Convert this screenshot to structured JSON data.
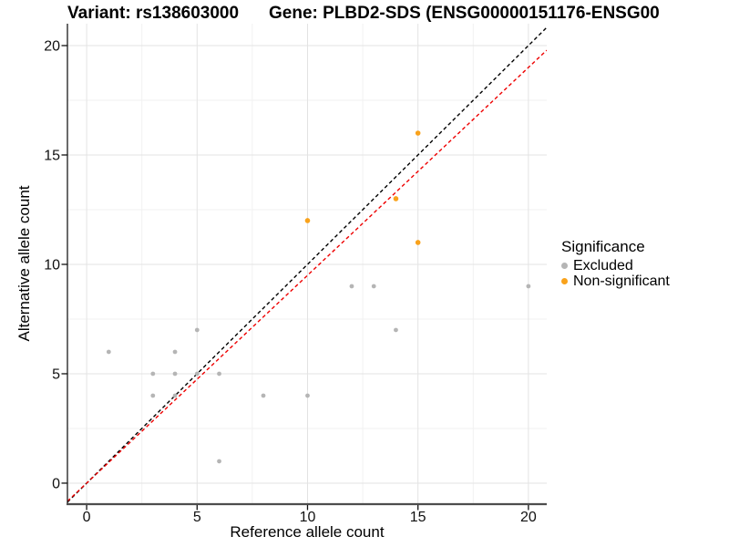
{
  "chart_data": {
    "type": "scatter",
    "titles": {
      "left": "Variant: rs138603000",
      "right": "Gene: PLBD2-SDS (ENSG00000151176-ENSG00"
    },
    "axes": {
      "x": {
        "label": "Reference allele count",
        "ticks": [
          0,
          5,
          10,
          15,
          20
        ],
        "minor": [
          2.5,
          7.5,
          12.5,
          17.5
        ],
        "range": [
          -0.87,
          20.83
        ]
      },
      "y": {
        "label": "Alternative allele count",
        "ticks": [
          0,
          5,
          10,
          15,
          20
        ],
        "minor": [
          2.5,
          7.5,
          12.5,
          17.5
        ],
        "range": [
          -0.96,
          21.0
        ]
      }
    },
    "legend": {
      "title": "Significance",
      "position": "right",
      "items": [
        {
          "label": "Excluded",
          "color": "#b5b5b5"
        },
        {
          "label": "Non-significant",
          "color": "#f9a21b"
        }
      ]
    },
    "series": [
      {
        "name": "Excluded",
        "color": "#b5b5b5",
        "marker_radius": 2.4,
        "points": [
          [
            1,
            6
          ],
          [
            3,
            4
          ],
          [
            3,
            5
          ],
          [
            4,
            4
          ],
          [
            4,
            5
          ],
          [
            4,
            6
          ],
          [
            5,
            5
          ],
          [
            5,
            7
          ],
          [
            6,
            1
          ],
          [
            6,
            5
          ],
          [
            8,
            4
          ],
          [
            10,
            4
          ],
          [
            12,
            9
          ],
          [
            13,
            9
          ],
          [
            14,
            7
          ],
          [
            20,
            9
          ]
        ]
      },
      {
        "name": "Non-significant",
        "color": "#f9a21b",
        "marker_radius": 2.8,
        "points": [
          [
            10,
            12
          ],
          [
            14,
            13
          ],
          [
            15,
            11
          ],
          [
            15,
            16
          ]
        ]
      }
    ],
    "ref_lines": [
      {
        "name": "identity-line",
        "slope": 1.0,
        "intercept": 0,
        "color": "#000000",
        "dash": "4 3"
      },
      {
        "name": "allelic-ratio-line",
        "slope": 0.95,
        "intercept": 0,
        "color": "#ee0000",
        "dash": "4 3"
      }
    ],
    "style": {
      "grid_major": "#e3e3e3",
      "grid_minor": "#f1f1f1",
      "axis_line": "#1a1a1a",
      "bottom_axis_line": "#4d4d4d",
      "tick_color": "#111111",
      "tick_label_color": "#111111",
      "background": "#ffffff"
    }
  }
}
